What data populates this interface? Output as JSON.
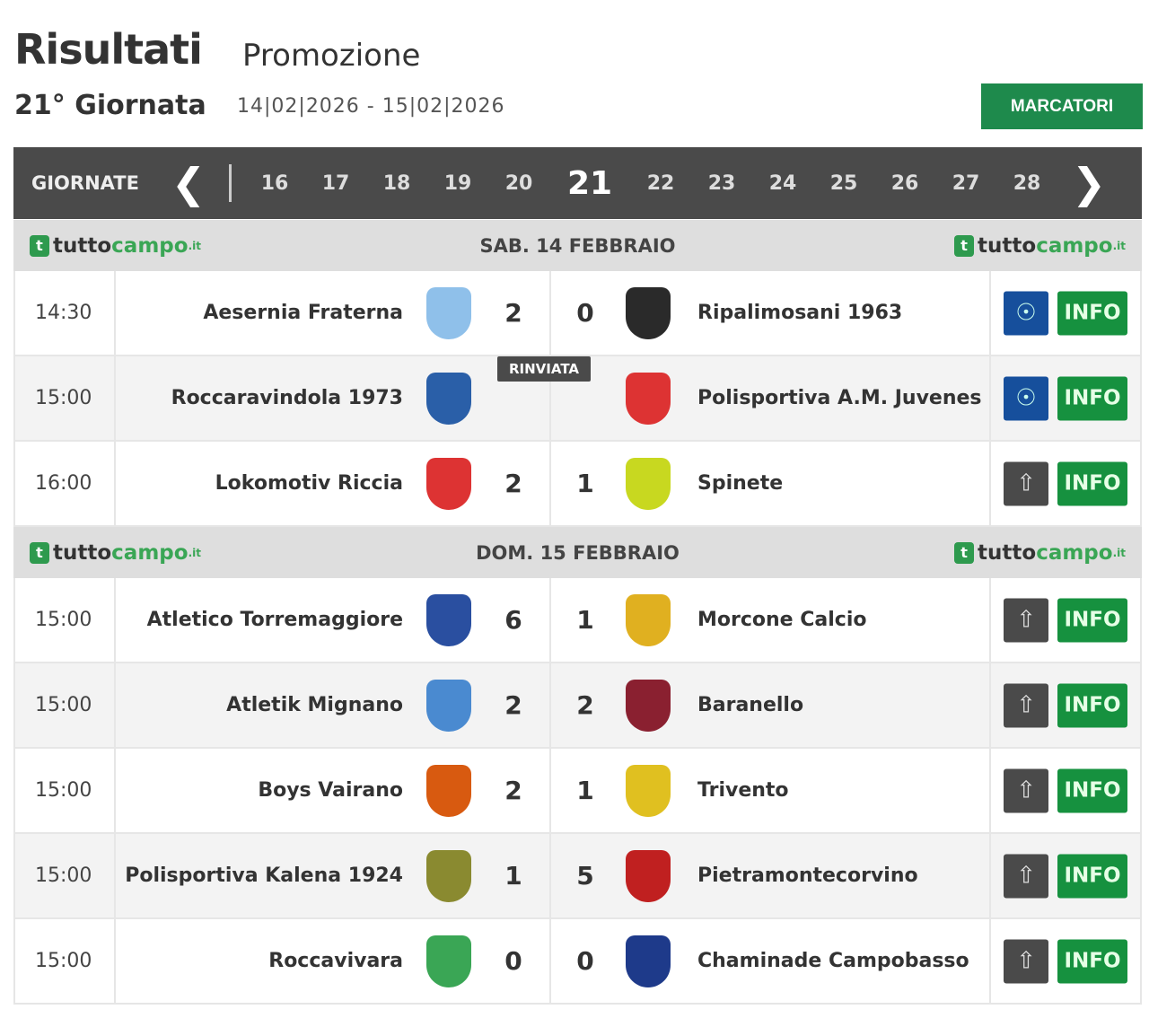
{
  "header": {
    "title": "Risultati",
    "competition": "Promozione",
    "round": "21° Giornata",
    "dates": "14|02|2026 - 15|02|2026",
    "marcatori": "MARCATORI"
  },
  "nav": {
    "label": "GIORNATE",
    "rounds": [
      "16",
      "17",
      "18",
      "19",
      "20",
      "21",
      "22",
      "23",
      "24",
      "25",
      "26",
      "27",
      "28"
    ],
    "active": "21"
  },
  "brand": {
    "t": "tutto",
    "c": "campo",
    ".it": ".it"
  },
  "days": [
    {
      "label": "SAB. 14 FEBBRAIO",
      "matches": [
        {
          "time": "14:30",
          "home": "Aesernia Fraterna",
          "hs": "2",
          "as": "0",
          "away": "Ripalimosani 1963",
          "media": "video",
          "info": "INFO",
          "hc": "#8fc0ea",
          "ac": "#2a2a2a"
        },
        {
          "time": "15:00",
          "home": "Roccaravindola 1973",
          "status": "RINVIATA",
          "away": "Polisportiva A.M. Juvenes",
          "media": "video",
          "info": "INFO",
          "hc": "#2a5fa8",
          "ac": "#d33"
        },
        {
          "time": "16:00",
          "home": "Lokomotiv Riccia",
          "hs": "2",
          "as": "1",
          "away": "Spinete",
          "media": "upload",
          "info": "INFO",
          "hc": "#d33",
          "ac": "#c8d820"
        }
      ]
    },
    {
      "label": "DOM. 15 FEBBRAIO",
      "matches": [
        {
          "time": "15:00",
          "home": "Atletico Torremaggiore",
          "hs": "6",
          "as": "1",
          "away": "Morcone Calcio",
          "media": "upload",
          "info": "INFO",
          "hc": "#2a4fa0",
          "ac": "#e0b020"
        },
        {
          "time": "15:00",
          "home": "Atletik Mignano",
          "hs": "2",
          "as": "2",
          "away": "Baranello",
          "media": "upload",
          "info": "INFO",
          "hc": "#4a8ad0",
          "ac": "#8a2030"
        },
        {
          "time": "15:00",
          "home": "Boys Vairano",
          "hs": "2",
          "as": "1",
          "away": "Trivento",
          "media": "upload",
          "info": "INFO",
          "hc": "#d85a10",
          "ac": "#e0c020"
        },
        {
          "time": "15:00",
          "home": "Polisportiva Kalena 1924",
          "hs": "1",
          "as": "5",
          "away": "Pietramontecorvino",
          "media": "upload",
          "info": "INFO",
          "hc": "#8a8a30",
          "ac": "#c02020"
        },
        {
          "time": "15:00",
          "home": "Roccavivara",
          "hs": "0",
          "as": "0",
          "away": "Chaminade Campobasso",
          "media": "upload",
          "info": "INFO",
          "hc": "#3aa655",
          "ac": "#1e3a8a"
        }
      ]
    }
  ]
}
